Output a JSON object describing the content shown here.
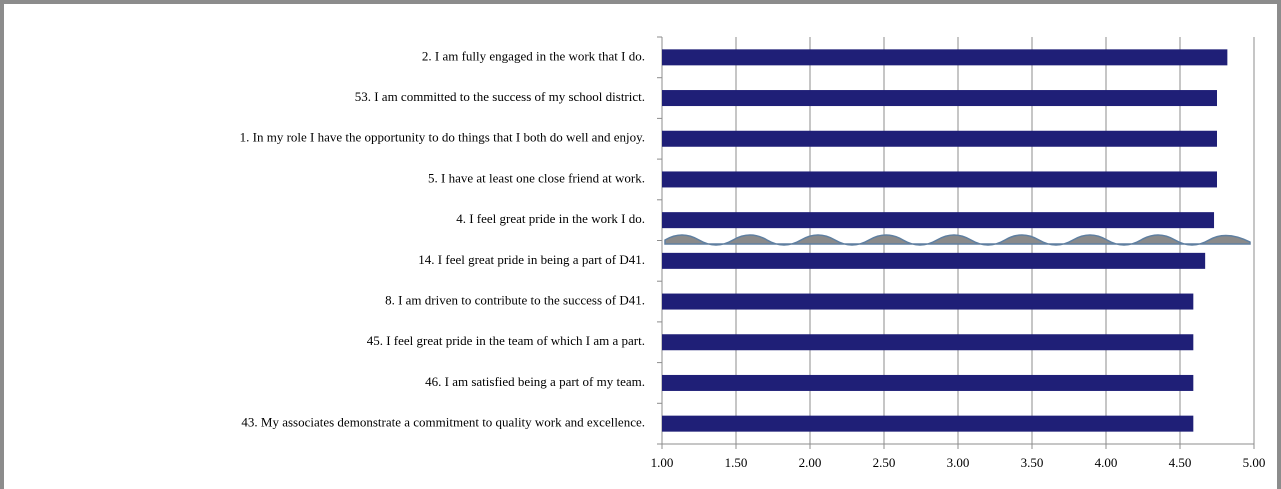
{
  "chart_data": {
    "type": "barh",
    "categories": [
      "2. I am fully engaged in the work that I do.",
      "53. I am committed to the success of my school district.",
      "1. In my role I have the opportunity to do things that I both do well and enjoy.",
      "5. I have at least one close friend at work.",
      "4. I feel great pride in the work I do.",
      "14. I feel great pride in being a part of  D41.",
      "8. I am driven to contribute to the success of  D41.",
      "45. I feel great pride in the team of which I am a part.",
      "46. I am satisfied being a part of my team.",
      "43. My associates demonstrate a commitment to quality work and excellence."
    ],
    "values": [
      4.82,
      4.75,
      4.75,
      4.75,
      4.73,
      4.67,
      4.59,
      4.59,
      4.59,
      4.59
    ],
    "color": "#1f1f77",
    "xlim": [
      1,
      5
    ],
    "xticks": [
      {
        "value": 1,
        "label": "1.00"
      },
      {
        "value": 1.5,
        "label": "1.50"
      },
      {
        "value": 2,
        "label": "2.00"
      },
      {
        "value": 2.5,
        "label": "2.50"
      },
      {
        "value": 3,
        "label": "3.00"
      },
      {
        "value": 3.5,
        "label": "3.50"
      },
      {
        "value": 4,
        "label": "4.00"
      },
      {
        "value": 4.5,
        "label": "4.50"
      },
      {
        "value": 5,
        "label": "5.00"
      }
    ],
    "grid": true
  }
}
